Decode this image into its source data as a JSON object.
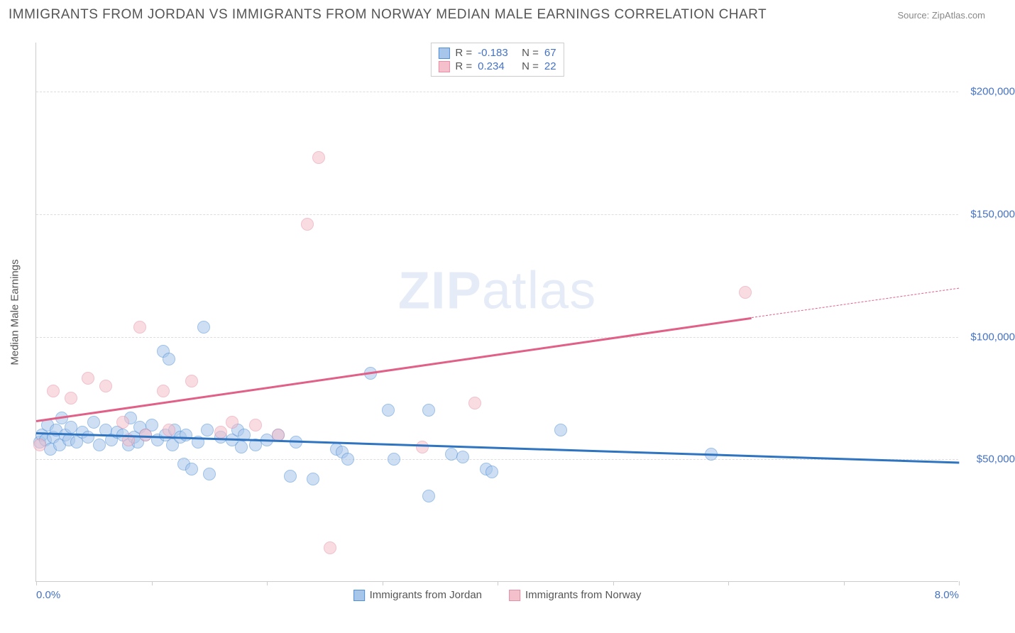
{
  "title": "IMMIGRANTS FROM JORDAN VS IMMIGRANTS FROM NORWAY MEDIAN MALE EARNINGS CORRELATION CHART",
  "source_label": "Source: ZipAtlas.com",
  "watermark_bold": "ZIP",
  "watermark_rest": "atlas",
  "chart": {
    "type": "scatter",
    "yaxis_title": "Median Male Earnings",
    "xlim": [
      0,
      8
    ],
    "ylim": [
      0,
      220000
    ],
    "xtick_positions": [
      0,
      1,
      2,
      3,
      4,
      5,
      6,
      7,
      8
    ],
    "xtick_labels": {
      "0": "0.0%",
      "8": "8.0%"
    },
    "ytick_positions": [
      50000,
      100000,
      150000,
      200000
    ],
    "ytick_labels": [
      "$50,000",
      "$100,000",
      "$150,000",
      "$200,000"
    ],
    "grid_color": "#dddddd",
    "axis_color": "#cccccc",
    "tick_label_color": "#4472c4",
    "background_color": "#ffffff",
    "marker_radius": 9,
    "marker_stroke_width": 1.5,
    "series": [
      {
        "name": "Immigrants from Jordan",
        "fill": "#a8c6ea",
        "fill_opacity": 0.55,
        "stroke": "#4e8fd6",
        "R": -0.183,
        "N": 67,
        "trend_color": "#2f74c0",
        "trend_width": 3,
        "trend_x1": 0,
        "trend_y1": 61000,
        "trend_x2": 8,
        "trend_y2": 49000,
        "points": [
          [
            0.03,
            57000
          ],
          [
            0.05,
            60000
          ],
          [
            0.08,
            58000
          ],
          [
            0.1,
            64000
          ],
          [
            0.12,
            54000
          ],
          [
            0.15,
            59000
          ],
          [
            0.17,
            62000
          ],
          [
            0.2,
            56000
          ],
          [
            0.22,
            67000
          ],
          [
            0.25,
            60000
          ],
          [
            0.28,
            58000
          ],
          [
            0.3,
            63000
          ],
          [
            0.35,
            57000
          ],
          [
            0.4,
            61000
          ],
          [
            0.45,
            59000
          ],
          [
            0.5,
            65000
          ],
          [
            0.55,
            56000
          ],
          [
            0.6,
            62000
          ],
          [
            0.65,
            58000
          ],
          [
            0.7,
            61000
          ],
          [
            0.75,
            60000
          ],
          [
            0.8,
            56000
          ],
          [
            0.82,
            67000
          ],
          [
            0.85,
            59000
          ],
          [
            0.88,
            57000
          ],
          [
            0.9,
            63000
          ],
          [
            0.95,
            60000
          ],
          [
            1.0,
            64000
          ],
          [
            1.05,
            58000
          ],
          [
            1.1,
            94000
          ],
          [
            1.12,
            60000
          ],
          [
            1.15,
            91000
          ],
          [
            1.18,
            56000
          ],
          [
            1.2,
            62000
          ],
          [
            1.25,
            59000
          ],
          [
            1.28,
            48000
          ],
          [
            1.3,
            60000
          ],
          [
            1.35,
            46000
          ],
          [
            1.4,
            57000
          ],
          [
            1.45,
            104000
          ],
          [
            1.48,
            62000
          ],
          [
            1.5,
            44000
          ],
          [
            1.6,
            59000
          ],
          [
            1.7,
            58000
          ],
          [
            1.75,
            62000
          ],
          [
            1.78,
            55000
          ],
          [
            1.8,
            60000
          ],
          [
            1.9,
            56000
          ],
          [
            2.0,
            58000
          ],
          [
            2.1,
            60000
          ],
          [
            2.2,
            43000
          ],
          [
            2.25,
            57000
          ],
          [
            2.4,
            42000
          ],
          [
            2.6,
            54000
          ],
          [
            2.65,
            53000
          ],
          [
            2.7,
            50000
          ],
          [
            2.9,
            85000
          ],
          [
            3.05,
            70000
          ],
          [
            3.1,
            50000
          ],
          [
            3.4,
            35000
          ],
          [
            3.4,
            70000
          ],
          [
            3.6,
            52000
          ],
          [
            3.7,
            51000
          ],
          [
            3.9,
            46000
          ],
          [
            3.95,
            45000
          ],
          [
            4.55,
            62000
          ],
          [
            5.85,
            52000
          ]
        ]
      },
      {
        "name": "Immigrants from Norway",
        "fill": "#f4c0cc",
        "fill_opacity": 0.55,
        "stroke": "#e78fa6",
        "R": 0.234,
        "N": 22,
        "trend_color": "#e06088",
        "trend_width": 2.5,
        "trend_solid_x1": 0,
        "trend_solid_y1": 66000,
        "trend_solid_x2": 6.2,
        "trend_solid_y2": 108000,
        "trend_dash_x2": 8,
        "trend_dash_y2": 120000,
        "points": [
          [
            0.03,
            56000
          ],
          [
            0.15,
            78000
          ],
          [
            0.3,
            75000
          ],
          [
            0.45,
            83000
          ],
          [
            0.6,
            80000
          ],
          [
            0.75,
            65000
          ],
          [
            0.8,
            58000
          ],
          [
            0.9,
            104000
          ],
          [
            0.95,
            60000
          ],
          [
            1.1,
            78000
          ],
          [
            1.15,
            62000
          ],
          [
            1.35,
            82000
          ],
          [
            1.6,
            61000
          ],
          [
            1.7,
            65000
          ],
          [
            1.9,
            64000
          ],
          [
            2.1,
            60000
          ],
          [
            2.35,
            146000
          ],
          [
            2.45,
            173000
          ],
          [
            2.55,
            14000
          ],
          [
            3.35,
            55000
          ],
          [
            3.8,
            73000
          ],
          [
            6.15,
            118000
          ]
        ]
      }
    ],
    "legend_top": [
      {
        "series": 0,
        "R_text": "-0.183",
        "N_text": "67"
      },
      {
        "series": 1,
        "R_text": "0.234",
        "N_text": "22"
      }
    ],
    "legend_top_labels": {
      "R": "R =",
      "N": "N ="
    }
  }
}
